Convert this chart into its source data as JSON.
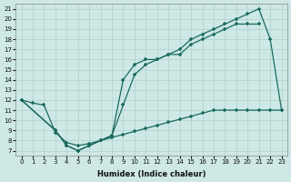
{
  "xlabel": "Humidex (Indice chaleur)",
  "bg_color": "#cde8e5",
  "grid_color": "#afd0cc",
  "line_color": "#1a6b5e",
  "line1_x": [
    0,
    1,
    2,
    3,
    4,
    5,
    6,
    7,
    8,
    9,
    10,
    11,
    12,
    13,
    14,
    15,
    16,
    17,
    18,
    19,
    20,
    21,
    22,
    23
  ],
  "line1_y": [
    12,
    11.7,
    11.5,
    8.8,
    7.8,
    7.5,
    7.7,
    8.0,
    8.3,
    8.6,
    8.9,
    9.2,
    9.5,
    9.8,
    10.1,
    10.4,
    10.7,
    11.0,
    11.0,
    11.0,
    11.0,
    11.0,
    11.0,
    11.0
  ],
  "line2_x": [
    0,
    3,
    4,
    5,
    6,
    7,
    8,
    9,
    10,
    11,
    12,
    13,
    14,
    15,
    16,
    17,
    18,
    19,
    20,
    21
  ],
  "line2_y": [
    12,
    9.0,
    7.5,
    7.0,
    7.5,
    8.0,
    8.5,
    14.0,
    15.5,
    16.0,
    16.0,
    16.5,
    16.5,
    17.5,
    18.0,
    18.5,
    19.0,
    19.5,
    19.5,
    19.5
  ],
  "line3_x": [
    0,
    3,
    4,
    5,
    6,
    7,
    8,
    9,
    10,
    11,
    12,
    13,
    14,
    15,
    16,
    17,
    18,
    19,
    20,
    21,
    22,
    23
  ],
  "line3_y": [
    12,
    9.0,
    7.5,
    7.0,
    7.5,
    8.0,
    8.5,
    11.5,
    14.5,
    15.5,
    16.0,
    16.5,
    17.0,
    18.0,
    18.5,
    19.0,
    19.5,
    20.0,
    20.5,
    21.0,
    18.0,
    11.0
  ],
  "xlim": [
    -0.5,
    23.5
  ],
  "ylim": [
    6.5,
    21.5
  ],
  "xticks": [
    0,
    1,
    2,
    3,
    4,
    5,
    6,
    7,
    8,
    9,
    10,
    11,
    12,
    13,
    14,
    15,
    16,
    17,
    18,
    19,
    20,
    21,
    22,
    23
  ],
  "yticks": [
    7,
    8,
    9,
    10,
    11,
    12,
    13,
    14,
    15,
    16,
    17,
    18,
    19,
    20,
    21
  ]
}
